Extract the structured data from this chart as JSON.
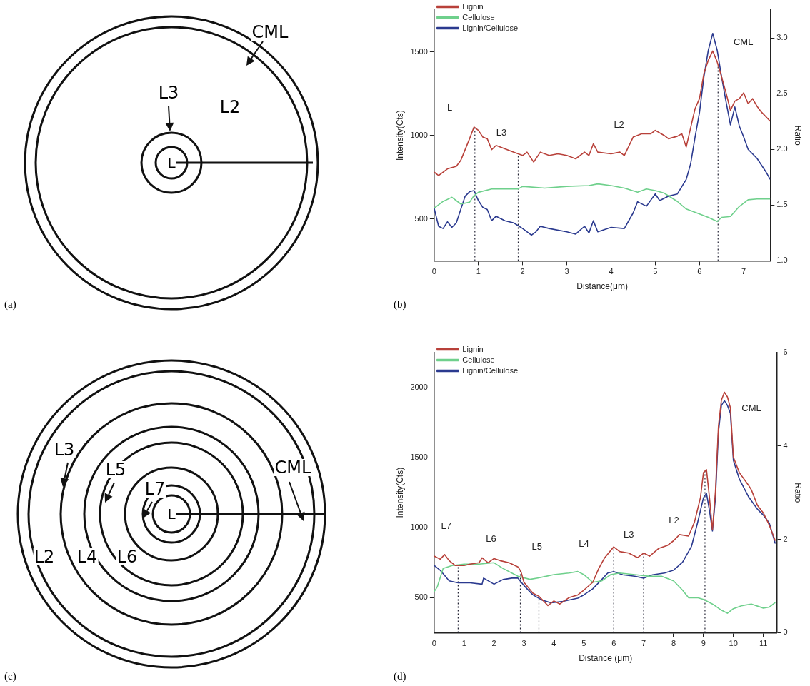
{
  "chart_data": [
    {
      "type": "other",
      "title": "(a)",
      "annotations": [
        "CML",
        "L3",
        "L2",
        "L"
      ]
    },
    {
      "type": "line",
      "title": "(b)",
      "xlabel": "Distance(μm)",
      "ylabel": "Intensity(Cts)",
      "y2label": "Ratio",
      "xlim": [
        0,
        7.6
      ],
      "xticks": [
        0,
        1,
        2,
        3,
        4,
        5,
        6,
        7
      ],
      "ylim": [
        250,
        1750
      ],
      "yticks": [
        500,
        1000,
        1500
      ],
      "y2lim": [
        1.0,
        3.25
      ],
      "y2ticks": [
        {
          "value": 1,
          "label": "1.0"
        },
        1.5,
        {
          "value": 2,
          "label": "2.0"
        },
        2.5,
        {
          "value": 3,
          "label": "3.0"
        }
      ],
      "legend": "top left",
      "grid": false,
      "marker": "none",
      "line_style": "solid",
      "series": [
        {
          "name": "Lignin",
          "color": "#b8413a",
          "x": [
            0,
            0.1,
            0.3,
            0.5,
            0.6,
            0.7,
            0.8,
            0.9,
            1.0,
            1.1,
            1.2,
            1.3,
            1.4,
            1.6,
            1.8,
            2.0,
            2.1,
            2.25,
            2.4,
            2.6,
            2.8,
            3.0,
            3.2,
            3.4,
            3.5,
            3.6,
            3.7,
            4.0,
            4.2,
            4.3,
            4.5,
            4.7,
            4.9,
            5.0,
            5.2,
            5.3,
            5.5,
            5.6,
            5.7,
            5.8,
            5.9,
            6.0,
            6.1,
            6.2,
            6.3,
            6.4,
            6.5,
            6.6,
            6.7,
            6.8,
            6.9,
            7.0,
            7.1,
            7.2,
            7.3,
            7.4,
            7.6
          ],
          "values": [
            780,
            760,
            800,
            815,
            850,
            915,
            980,
            1050,
            1030,
            990,
            980,
            915,
            940,
            920,
            900,
            880,
            900,
            840,
            900,
            880,
            890,
            880,
            860,
            900,
            880,
            950,
            900,
            890,
            900,
            880,
            990,
            1010,
            1010,
            1030,
            1000,
            980,
            995,
            1010,
            930,
            1045,
            1160,
            1220,
            1370,
            1450,
            1505,
            1440,
            1350,
            1255,
            1150,
            1205,
            1220,
            1255,
            1190,
            1220,
            1175,
            1140,
            1085
          ]
        },
        {
          "name": "Cellulose",
          "color": "#6fd08c",
          "x": [
            0,
            0.2,
            0.4,
            0.6,
            0.8,
            0.9,
            1.0,
            1.3,
            1.6,
            1.9,
            2.0,
            2.5,
            3.0,
            3.5,
            3.7,
            4.0,
            4.3,
            4.6,
            4.8,
            5.0,
            5.2,
            5.5,
            5.7,
            6.0,
            6.2,
            6.4,
            6.5,
            6.7,
            6.9,
            7.1,
            7.3,
            7.6
          ],
          "values": [
            565,
            605,
            630,
            590,
            600,
            640,
            660,
            680,
            680,
            680,
            695,
            685,
            695,
            700,
            710,
            700,
            685,
            660,
            680,
            670,
            655,
            605,
            560,
            530,
            510,
            485,
            510,
            515,
            575,
            615,
            620,
            620
          ]
        },
        {
          "name": "Lignin/Cellulose",
          "color": "#2b3a8f",
          "axis": "y2",
          "x": [
            0,
            0.1,
            0.2,
            0.3,
            0.4,
            0.5,
            0.6,
            0.7,
            0.8,
            0.9,
            1.0,
            1.1,
            1.2,
            1.3,
            1.4,
            1.6,
            1.8,
            2.0,
            2.2,
            2.3,
            2.4,
            2.6,
            3.0,
            3.2,
            3.4,
            3.5,
            3.6,
            3.7,
            4.0,
            4.3,
            4.5,
            4.6,
            4.8,
            5.0,
            5.1,
            5.3,
            5.5,
            5.7,
            5.8,
            5.9,
            6.0,
            6.1,
            6.2,
            6.3,
            6.4,
            6.5,
            6.6,
            6.7,
            6.8,
            6.9,
            7.0,
            7.1,
            7.3,
            7.5,
            7.6
          ],
          "values": [
            1.47,
            1.31,
            1.29,
            1.35,
            1.3,
            1.34,
            1.46,
            1.58,
            1.62,
            1.63,
            1.54,
            1.48,
            1.46,
            1.36,
            1.4,
            1.36,
            1.34,
            1.29,
            1.23,
            1.26,
            1.31,
            1.29,
            1.26,
            1.24,
            1.31,
            1.25,
            1.36,
            1.26,
            1.3,
            1.29,
            1.43,
            1.53,
            1.49,
            1.6,
            1.54,
            1.58,
            1.6,
            1.73,
            1.87,
            2.11,
            2.33,
            2.65,
            2.89,
            3.04,
            2.89,
            2.65,
            2.43,
            2.22,
            2.38,
            2.21,
            2.11,
            2.0,
            1.92,
            1.8,
            1.73
          ]
        }
      ],
      "ref_lines": [
        {
          "axis": "x",
          "value": 0.92,
          "line_style": "dotted"
        },
        {
          "axis": "x",
          "value": 1.9,
          "line_style": "dotted"
        },
        {
          "axis": "x",
          "value": 6.42,
          "line_style": "dotted"
        }
      ],
      "annotations": [
        "L",
        "L3",
        "L2",
        "CML"
      ]
    },
    {
      "type": "other",
      "title": "(c)",
      "annotations": [
        "CML",
        "L3",
        "L5",
        "L7",
        "L2",
        "L4",
        "L6",
        "L"
      ]
    },
    {
      "type": "line",
      "title": "(d)",
      "xlabel": "Distance (μm)",
      "ylabel": "Intensity(Cts)",
      "y2label": "Ratio",
      "xlim": [
        0,
        11.45
      ],
      "xticks": [
        0,
        1,
        2,
        3,
        4,
        5,
        6,
        7,
        8,
        9,
        10,
        11
      ],
      "ylim": [
        250,
        2250
      ],
      "yticks": [
        500,
        1000,
        1500,
        2000
      ],
      "y2lim": [
        0,
        6
      ],
      "y2ticks": [
        0,
        2,
        4,
        6
      ],
      "legend": "top left",
      "grid": false,
      "marker": "none",
      "line_style": "solid",
      "series": [
        {
          "name": "Lignin",
          "color": "#b8413a",
          "x": [
            0,
            0.2,
            0.35,
            0.5,
            0.7,
            1.0,
            1.2,
            1.5,
            1.6,
            1.8,
            2.0,
            2.2,
            2.5,
            2.8,
            2.9,
            3.0,
            3.3,
            3.5,
            3.8,
            4.0,
            4.2,
            4.5,
            4.8,
            5.0,
            5.3,
            5.5,
            5.7,
            6.0,
            6.2,
            6.5,
            6.8,
            7.0,
            7.2,
            7.5,
            7.8,
            8.0,
            8.2,
            8.5,
            8.7,
            8.9,
            9.0,
            9.1,
            9.2,
            9.3,
            9.4,
            9.5,
            9.6,
            9.7,
            9.8,
            9.9,
            10.0,
            10.2,
            10.5,
            10.6,
            10.8,
            11.0,
            11.2,
            11.4
          ],
          "values": [
            797,
            775,
            808,
            765,
            730,
            730,
            740,
            750,
            785,
            750,
            780,
            765,
            750,
            720,
            687,
            610,
            532,
            510,
            444,
            477,
            455,
            500,
            520,
            554,
            610,
            709,
            786,
            863,
            830,
            819,
            786,
            819,
            797,
            852,
            874,
            907,
            951,
            940,
            1040,
            1216,
            1393,
            1415,
            1216,
            985,
            1260,
            1724,
            1911,
            1967,
            1934,
            1856,
            1503,
            1393,
            1305,
            1271,
            1161,
            1106,
            1018,
            907
          ]
        },
        {
          "name": "Cellulose",
          "color": "#6fd08c",
          "x": [
            0,
            0.1,
            0.3,
            0.6,
            1.0,
            1.5,
            2.0,
            2.3,
            2.8,
            3.2,
            3.5,
            4.0,
            4.5,
            4.8,
            5.0,
            5.3,
            5.6,
            5.9,
            6.2,
            6.7,
            7.2,
            7.6,
            8.0,
            8.3,
            8.5,
            8.8,
            9.0,
            9.3,
            9.6,
            9.8,
            10.0,
            10.3,
            10.6,
            11.0,
            11.2,
            11.4
          ],
          "values": [
            543,
            576,
            709,
            730,
            740,
            740,
            750,
            709,
            653,
            631,
            642,
            665,
            676,
            687,
            665,
            610,
            620,
            665,
            676,
            665,
            653,
            653,
            620,
            554,
            500,
            500,
            488,
            455,
            411,
            389,
            422,
            444,
            455,
            426,
            433,
            466
          ]
        },
        {
          "name": "Lignin/Cellulose",
          "color": "#2b3a8f",
          "axis": "y2",
          "x": [
            0,
            0.2,
            0.5,
            0.8,
            1.2,
            1.6,
            1.65,
            2.0,
            2.3,
            2.6,
            2.8,
            3.0,
            3.3,
            3.6,
            3.9,
            4.3,
            4.8,
            5.0,
            5.3,
            5.6,
            5.8,
            6.0,
            6.3,
            6.7,
            7.0,
            7.3,
            7.7,
            8.0,
            8.3,
            8.6,
            8.8,
            9.0,
            9.1,
            9.2,
            9.3,
            9.4,
            9.5,
            9.6,
            9.7,
            9.8,
            9.9,
            10.0,
            10.2,
            10.5,
            10.8,
            11.0,
            11.2,
            11.4
          ],
          "values": [
            1.44,
            1.34,
            1.11,
            1.07,
            1.07,
            1.04,
            1.17,
            1.04,
            1.14,
            1.17,
            1.17,
            1.01,
            0.81,
            0.7,
            0.64,
            0.67,
            0.74,
            0.81,
            0.94,
            1.14,
            1.28,
            1.31,
            1.24,
            1.21,
            1.17,
            1.24,
            1.28,
            1.34,
            1.51,
            1.85,
            2.35,
            2.89,
            2.99,
            2.62,
            2.18,
            2.89,
            4.3,
            4.87,
            4.97,
            4.87,
            4.7,
            3.69,
            3.29,
            2.92,
            2.65,
            2.52,
            2.35,
            1.91
          ]
        }
      ],
      "ref_lines": [
        {
          "axis": "x",
          "value": 0.8,
          "line_style": "dotted"
        },
        {
          "axis": "x",
          "value": 2.88,
          "line_style": "dotted"
        },
        {
          "axis": "x",
          "value": 3.5,
          "line_style": "dotted"
        },
        {
          "axis": "x",
          "value": 6.0,
          "line_style": "dotted"
        },
        {
          "axis": "x",
          "value": 7.0,
          "line_style": "dotted"
        },
        {
          "axis": "x",
          "value": 9.05,
          "line_style": "dotted"
        }
      ],
      "annotations": [
        "L7",
        "L6",
        "L5",
        "L4",
        "L3",
        "L2",
        "CML"
      ]
    }
  ]
}
